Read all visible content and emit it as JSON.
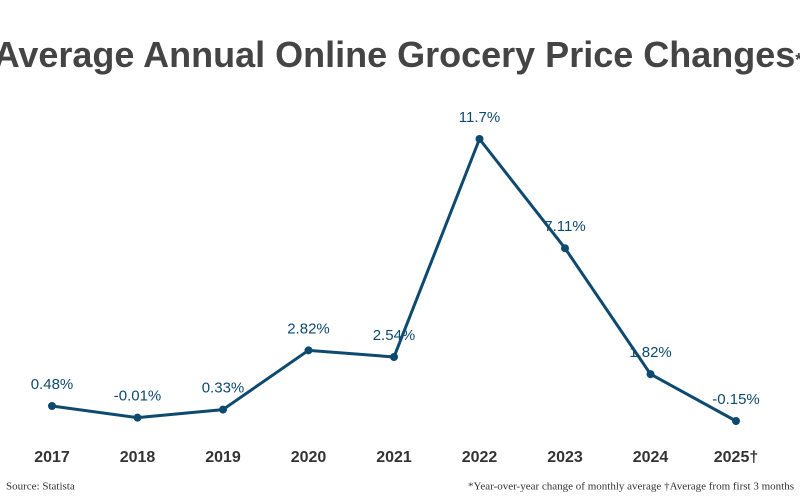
{
  "chart_data": {
    "type": "line",
    "title": "Average Annual Online Grocery Price Changes",
    "title_note": "*",
    "categories": [
      "2017",
      "2018",
      "2019",
      "2020",
      "2021",
      "2022",
      "2023",
      "2024",
      "2025†"
    ],
    "values": [
      0.48,
      -0.01,
      0.33,
      2.82,
      2.54,
      11.7,
      7.11,
      1.82,
      -0.15
    ],
    "value_labels": [
      "0.48%",
      "-0.01%",
      "0.33%",
      "2.82%",
      "2.54%",
      "11.7%",
      "7.11%",
      "1.82%",
      "-0.15%"
    ],
    "color": "#0e4a6f",
    "source": "Source: Statista",
    "footnote": "*Year-over-year change of monthly average †Average from first 3 months"
  }
}
